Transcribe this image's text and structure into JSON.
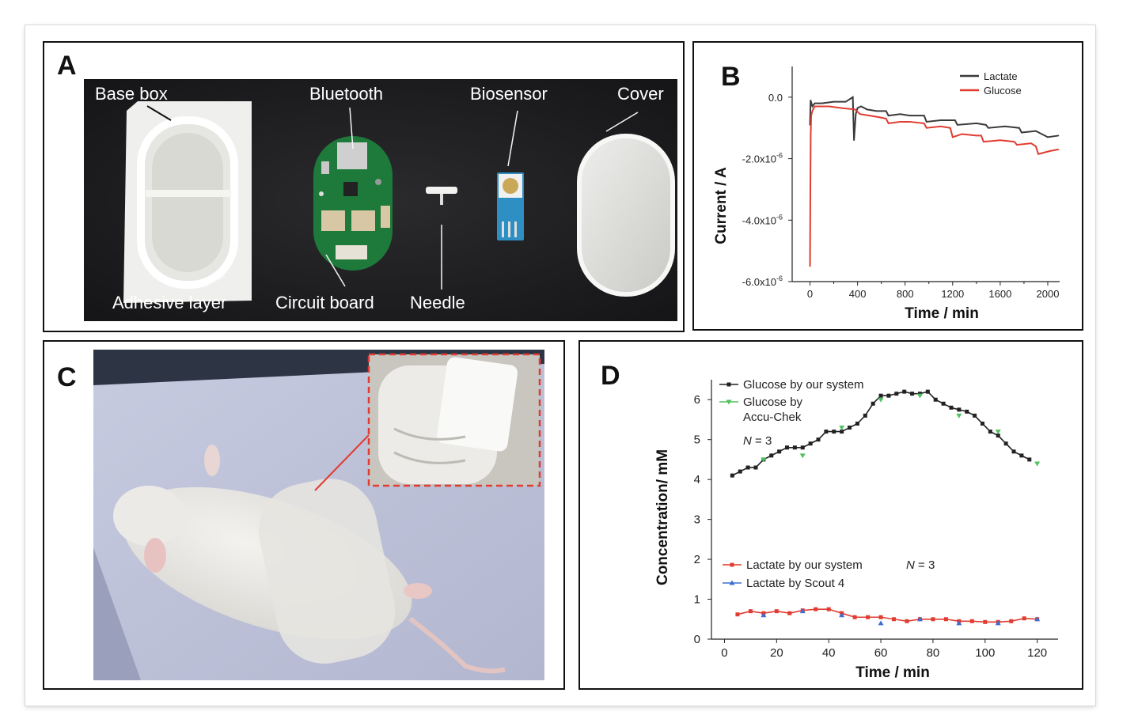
{
  "panels": {
    "A": {
      "letter": "A",
      "labels": {
        "base_box": "Base box",
        "bluetooth": "Bluetooth",
        "biosensor": "Biosensor",
        "cover": "Cover",
        "adhesive_layer": "Adhesive layer",
        "circuit_board": "Circuit board",
        "needle": "Needle"
      }
    },
    "B": {
      "letter": "B"
    },
    "C": {
      "letter": "C"
    },
    "D": {
      "letter": "D"
    }
  },
  "chart_data": [
    {
      "panel": "B",
      "type": "line",
      "xlabel": "Time / min",
      "ylabel": "Current / A",
      "xlim": [
        -150,
        2100
      ],
      "ylim": [
        -6e-06,
        1e-06
      ],
      "xticks": [
        0,
        400,
        800,
        1200,
        1600,
        2000
      ],
      "yticks": [
        {
          "value": 0,
          "label": "0.0"
        },
        {
          "value": -2e-06,
          "label": "-2.0x10",
          "exp": "-6"
        },
        {
          "value": -4e-06,
          "label": "-4.0x10",
          "exp": "-6"
        },
        {
          "value": -6e-06,
          "label": "-6.0x10",
          "exp": "-6"
        }
      ],
      "legend_position": "top-right",
      "series": [
        {
          "name": "Lactate",
          "color": "#3a3a3a",
          "x": [
            0,
            5,
            20,
            40,
            100,
            200,
            300,
            360,
            370,
            385,
            400,
            430,
            480,
            560,
            640,
            660,
            760,
            840,
            960,
            980,
            1100,
            1220,
            1240,
            1400,
            1480,
            1500,
            1640,
            1760,
            1780,
            1900,
            2000,
            2090
          ],
          "y": [
            -9e-07,
            -1e-07,
            -3e-07,
            -2e-07,
            -2e-07,
            -1.5e-07,
            -1.5e-07,
            0.0,
            -1.4e-06,
            -5.5e-07,
            -3.5e-07,
            -3e-07,
            -4e-07,
            -4.5e-07,
            -4.5e-07,
            -6e-07,
            -5.5e-07,
            -6e-07,
            -6e-07,
            -8e-07,
            -7.5e-07,
            -7.5e-07,
            -9e-07,
            -8.5e-07,
            -9e-07,
            -1e-06,
            -9.5e-07,
            -1e-06,
            -1.15e-06,
            -1.1e-06,
            -1.3e-06,
            -1.25e-06
          ]
        },
        {
          "name": "Glucose",
          "color": "#e03c31",
          "x": [
            0,
            3,
            6,
            10,
            20,
            40,
            80,
            160,
            260,
            380,
            420,
            500,
            580,
            640,
            660,
            760,
            840,
            960,
            980,
            1100,
            1180,
            1200,
            1280,
            1400,
            1440,
            1460,
            1600,
            1720,
            1740,
            1860,
            1900,
            1920,
            2020,
            2090
          ],
          "y": [
            -5.5e-06,
            -3e-06,
            -1.2e-06,
            -6e-07,
            -4.5e-07,
            -3e-07,
            -3e-07,
            -3e-07,
            -3.5e-07,
            -4e-07,
            -5.5e-07,
            -6e-07,
            -6.5e-07,
            -7e-07,
            -8.5e-07,
            -8e-07,
            -8e-07,
            -8.5e-07,
            -1e-06,
            -9.5e-07,
            -1e-06,
            -1.3e-06,
            -1.2e-06,
            -1.25e-06,
            -1.25e-06,
            -1.45e-06,
            -1.4e-06,
            -1.45e-06,
            -1.55e-06,
            -1.5e-06,
            -1.6e-06,
            -1.85e-06,
            -1.75e-06,
            -1.7e-06
          ]
        }
      ]
    },
    {
      "panel": "D",
      "type": "line",
      "xlabel": "Time / min",
      "ylabel": "Concentration/ mM",
      "xlim": [
        -5,
        128
      ],
      "ylim": [
        0,
        6.5
      ],
      "xticks": [
        0,
        20,
        40,
        60,
        80,
        100,
        120
      ],
      "yticks": [
        0,
        1,
        2,
        3,
        4,
        5,
        6
      ],
      "annotations": [
        {
          "text": "N",
          "suffix": " = 3",
          "near": "glucose-legend"
        },
        {
          "text": "N",
          "suffix": " = 3",
          "near": "lactate-legend"
        }
      ],
      "series": [
        {
          "name": "Glucose by our system",
          "color": "#222222",
          "marker": "square",
          "style": "line",
          "x": [
            3,
            6,
            9,
            12,
            15,
            18,
            21,
            24,
            27,
            30,
            33,
            36,
            39,
            42,
            45,
            48,
            51,
            54,
            57,
            60,
            63,
            66,
            69,
            72,
            75,
            78,
            81,
            84,
            87,
            90,
            93,
            96,
            99,
            102,
            105,
            108,
            111,
            114,
            117
          ],
          "y": [
            4.1,
            4.2,
            4.3,
            4.3,
            4.5,
            4.6,
            4.7,
            4.8,
            4.8,
            4.8,
            4.9,
            5.0,
            5.2,
            5.2,
            5.2,
            5.3,
            5.4,
            5.6,
            5.9,
            6.1,
            6.1,
            6.15,
            6.2,
            6.15,
            6.15,
            6.2,
            6.0,
            5.9,
            5.8,
            5.75,
            5.7,
            5.6,
            5.4,
            5.2,
            5.1,
            4.9,
            4.7,
            4.6,
            4.5
          ]
        },
        {
          "name": "Glucose by Accu-Chek",
          "color": "#4fc15e",
          "marker": "down-triangle",
          "style": "points",
          "x": [
            15,
            30,
            45,
            60,
            75,
            90,
            105,
            120
          ],
          "y": [
            4.5,
            4.6,
            5.3,
            6.0,
            6.1,
            5.6,
            5.2,
            4.4
          ]
        },
        {
          "name": "Lactate by our system",
          "color": "#e03c31",
          "marker": "square",
          "style": "line",
          "x": [
            5,
            10,
            15,
            20,
            25,
            30,
            35,
            40,
            45,
            50,
            55,
            60,
            65,
            70,
            75,
            80,
            85,
            90,
            95,
            100,
            105,
            110,
            115,
            120
          ],
          "y": [
            0.62,
            0.7,
            0.65,
            0.7,
            0.65,
            0.72,
            0.75,
            0.75,
            0.65,
            0.55,
            0.55,
            0.55,
            0.5,
            0.45,
            0.5,
            0.5,
            0.5,
            0.45,
            0.45,
            0.43,
            0.43,
            0.45,
            0.52,
            0.5
          ]
        },
        {
          "name": "Lactate by Scout 4",
          "color": "#3d6fd1",
          "marker": "up-triangle",
          "style": "points",
          "x": [
            15,
            30,
            45,
            60,
            75,
            90,
            105,
            120
          ],
          "y": [
            0.6,
            0.7,
            0.6,
            0.4,
            0.5,
            0.4,
            0.4,
            0.5
          ]
        }
      ]
    }
  ]
}
